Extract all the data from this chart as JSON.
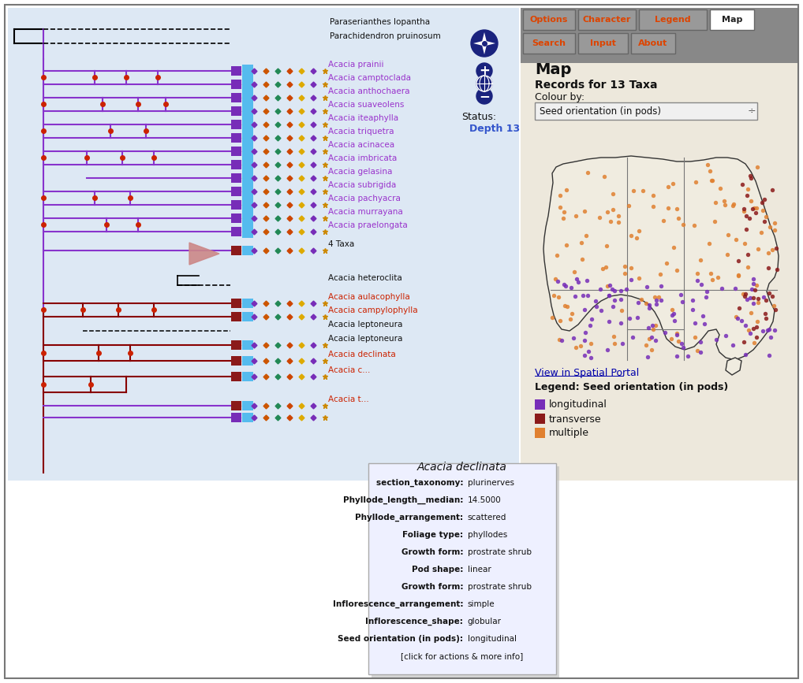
{
  "fig_w": 10.18,
  "fig_h": 8.67,
  "bg_left": "#dde8f4",
  "bg_right": "#ede8dc",
  "purple": "#8833cc",
  "dark_red": "#880000",
  "red_dot": "#cc2200",
  "nav_btn_bg": "#999999",
  "nav_btn_active_bg": "#ffffff",
  "nav_btn_text": "#dd4400",
  "nav_btn_active_text": "#222222",
  "nav_buttons_row1": [
    "Options",
    "Character",
    "Legend",
    "Map"
  ],
  "nav_buttons_row2": [
    "Search",
    "Input",
    "About"
  ],
  "active_tab": "Map",
  "compass_color": "#1a237e",
  "status_label": "Status:",
  "status_value": "Depth 13",
  "status_color": "#3355cc",
  "map_title": "Map",
  "map_records": "Records for 13 Taxa",
  "colour_by": "Colour by:",
  "dropdown": "Seed orientation (in pods)",
  "spatial_link": "View in Spatial Portal",
  "legend_title": "Legend: Seed orientation (in pods)",
  "legend_items": [
    "longitudinal",
    "transverse",
    "multiple"
  ],
  "legend_colors_hex": [
    "#772db8",
    "#8b1a1a",
    "#e08030"
  ],
  "outgroup_names": [
    "Paraserianthes lopantha",
    "Parachidendron pruinosum"
  ],
  "purple_taxa": [
    "Acacia prainii",
    "Acacia camptoclada",
    "Acacia anthochaera",
    "Acacia suaveolens",
    "Acacia iteaphylla",
    "Acacia triquetra",
    "Acacia acinacea",
    "Acacia imbricata",
    "Acacia gelasina",
    "Acacia subrigida",
    "Acacia pachyacra",
    "Acacia murrayana",
    "Acacia praelongata"
  ],
  "four_taxa": "4 Taxa",
  "acacia_heteroclita": "Acacia heteroclita",
  "red_taxa": [
    "Acacia aulacophylla",
    "Acacia campylophylla",
    "Acacia leptoneura",
    "Acacia declinata",
    "Acacia c...",
    "Acacia t..."
  ],
  "popup_title": "Acacia declinata",
  "popup_data": [
    [
      "section_taxonomy",
      "plurinerves"
    ],
    [
      "Phyllode_length__median",
      "14.5000"
    ],
    [
      "Phyllode_arrangement",
      "scattered"
    ],
    [
      "Foliage type",
      "phyllodes"
    ],
    [
      "Growth form",
      "prostrate shrub"
    ],
    [
      "Pod shape",
      "linear"
    ],
    [
      "Growth form",
      "prostrate shrub"
    ],
    [
      "Inflorescence_arrangement",
      "simple"
    ],
    [
      "Inflorescence_shape",
      "globular"
    ],
    [
      "Seed orientation (in pods)",
      "longitudinal"
    ],
    [
      "[click for actions & more info]",
      ""
    ]
  ]
}
